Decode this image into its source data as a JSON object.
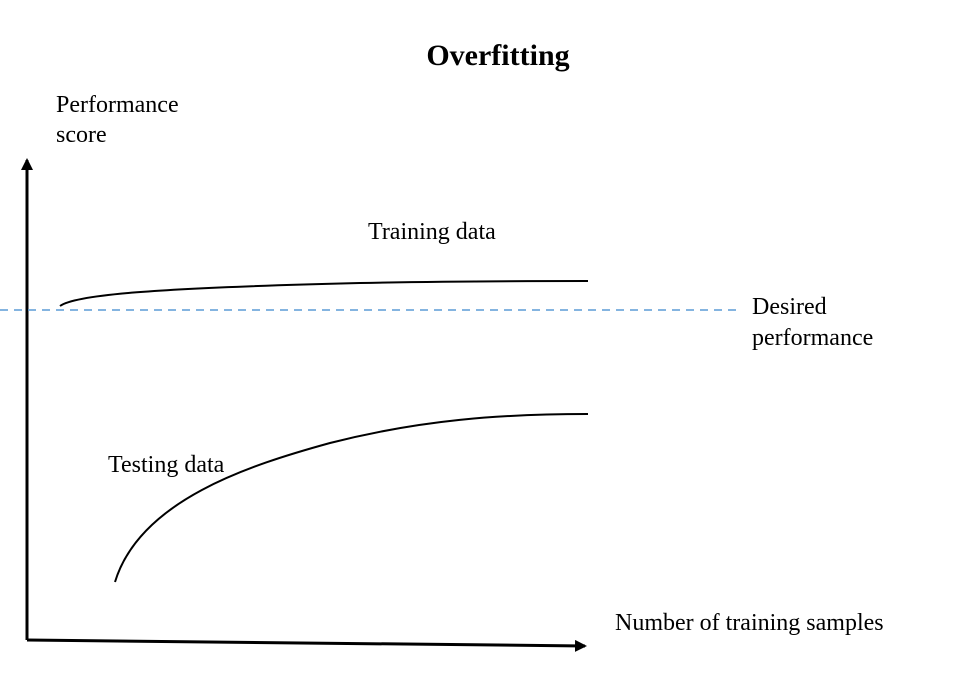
{
  "title": "Overfitting",
  "y_axis_label": {
    "line1": "Performance",
    "line2": "score"
  },
  "x_axis_label": "Number of training samples",
  "curves": {
    "training": {
      "label": "Training data"
    },
    "testing": {
      "label": "Testing data"
    }
  },
  "desired_line": {
    "line1": "Desired",
    "line2": "performance",
    "color": "#5b9bd5"
  },
  "axis_color": "#000000"
}
